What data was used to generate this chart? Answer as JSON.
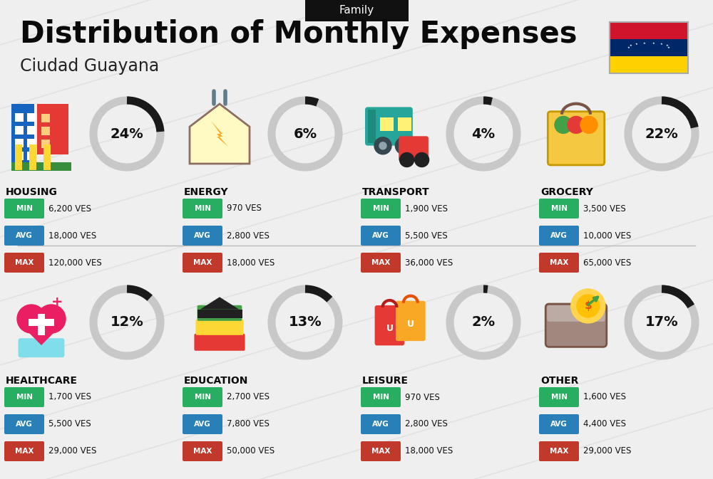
{
  "title": "Distribution of Monthly Expenses",
  "subtitle": "Ciudad Guayana",
  "tag": "Family",
  "bg_color": "#efefef",
  "categories": [
    {
      "name": "HOUSING",
      "pct": 24,
      "emoji": "🏗",
      "icon_label": "housing",
      "min": "6,200 VES",
      "avg": "18,000 VES",
      "max": "120,000 VES",
      "col": 0,
      "row": 0
    },
    {
      "name": "ENERGY",
      "pct": 6,
      "emoji": "⚡",
      "icon_label": "energy",
      "min": "970 VES",
      "avg": "2,800 VES",
      "max": "18,000 VES",
      "col": 1,
      "row": 0
    },
    {
      "name": "TRANSPORT",
      "pct": 4,
      "emoji": "🚌",
      "icon_label": "transport",
      "min": "1,900 VES",
      "avg": "5,500 VES",
      "max": "36,000 VES",
      "col": 2,
      "row": 0
    },
    {
      "name": "GROCERY",
      "pct": 22,
      "emoji": "🛍",
      "icon_label": "grocery",
      "min": "3,500 VES",
      "avg": "10,000 VES",
      "max": "65,000 VES",
      "col": 3,
      "row": 0
    },
    {
      "name": "HEALTHCARE",
      "pct": 12,
      "emoji": "💗",
      "icon_label": "healthcare",
      "min": "1,700 VES",
      "avg": "5,500 VES",
      "max": "29,000 VES",
      "col": 0,
      "row": 1
    },
    {
      "name": "EDUCATION",
      "pct": 13,
      "emoji": "🎓",
      "icon_label": "education",
      "min": "2,700 VES",
      "avg": "7,800 VES",
      "max": "50,000 VES",
      "col": 1,
      "row": 1
    },
    {
      "name": "LEISURE",
      "pct": 2,
      "emoji": "🛍",
      "icon_label": "leisure",
      "min": "970 VES",
      "avg": "2,800 VES",
      "max": "18,000 VES",
      "col": 2,
      "row": 1
    },
    {
      "name": "OTHER",
      "pct": 17,
      "emoji": "💰",
      "icon_label": "other",
      "min": "1,600 VES",
      "avg": "4,400 VES",
      "max": "29,000 VES",
      "col": 3,
      "row": 1
    }
  ],
  "min_color": "#27ae60",
  "avg_color": "#2980b9",
  "max_color": "#c0392b",
  "donut_dark": "#1a1a1a",
  "donut_gray": "#c8c8c8",
  "flag_colors": [
    "#ffd100",
    "#002868",
    "#cf142b"
  ]
}
